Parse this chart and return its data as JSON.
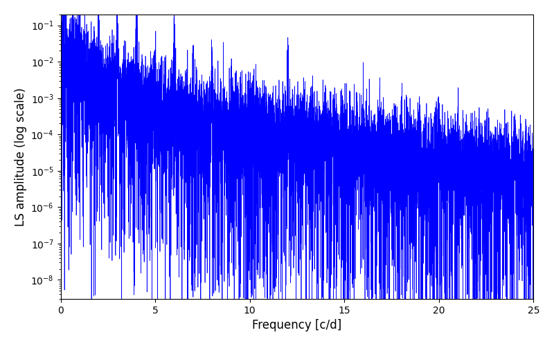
{
  "title": "",
  "xlabel": "Frequency [c/d]",
  "ylabel": "LS amplitude (log scale)",
  "xlim": [
    0,
    25
  ],
  "ylim": [
    3e-09,
    0.2
  ],
  "xticks": [
    0,
    5,
    10,
    15,
    20,
    25
  ],
  "line_color": "#0000ff",
  "line_width": 0.5,
  "background_color": "#ffffff",
  "seed": 42
}
